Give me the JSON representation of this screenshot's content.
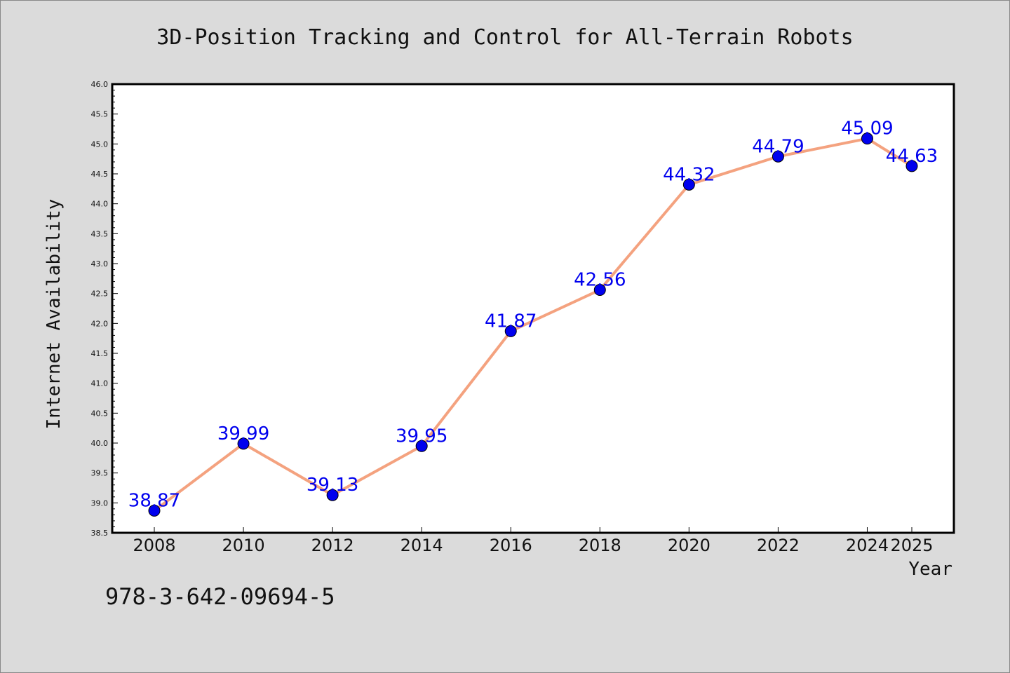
{
  "colors": {
    "background": "#dbdbdb",
    "plot_background": "#ffffff",
    "line": "#f4a27f",
    "marker": "#0000ee",
    "data_label": "#0000ee",
    "axis": "#000000"
  },
  "footer": {
    "isbn": "978-3-642-09694-5"
  },
  "chart_data": {
    "type": "line",
    "title": "3D-Position Tracking and Control for All-Terrain Robots",
    "xlabel": "Year",
    "ylabel": "Internet Availability",
    "x": [
      "2008",
      "2010",
      "2012",
      "2014",
      "2016",
      "2018",
      "2020",
      "2022",
      "2024",
      "2025"
    ],
    "y": [
      38.87,
      39.99,
      39.13,
      39.95,
      41.87,
      42.56,
      44.32,
      44.79,
      45.09,
      44.63
    ],
    "data_labels": [
      "38.87",
      "39.99",
      "39.13",
      "39.95",
      "41.87",
      "42.56",
      "44.32",
      "44.79",
      "45.09",
      "44.63"
    ],
    "ylim": [
      38.5,
      46.0
    ],
    "yticks": [
      "38.5",
      "39.0",
      "39.5",
      "40.0",
      "40.5",
      "41.0",
      "41.5",
      "42.0",
      "42.5",
      "43.0",
      "43.5",
      "44.0",
      "44.5",
      "45.0",
      "45.5",
      "46.0"
    ],
    "grid": false,
    "legend": "none"
  }
}
